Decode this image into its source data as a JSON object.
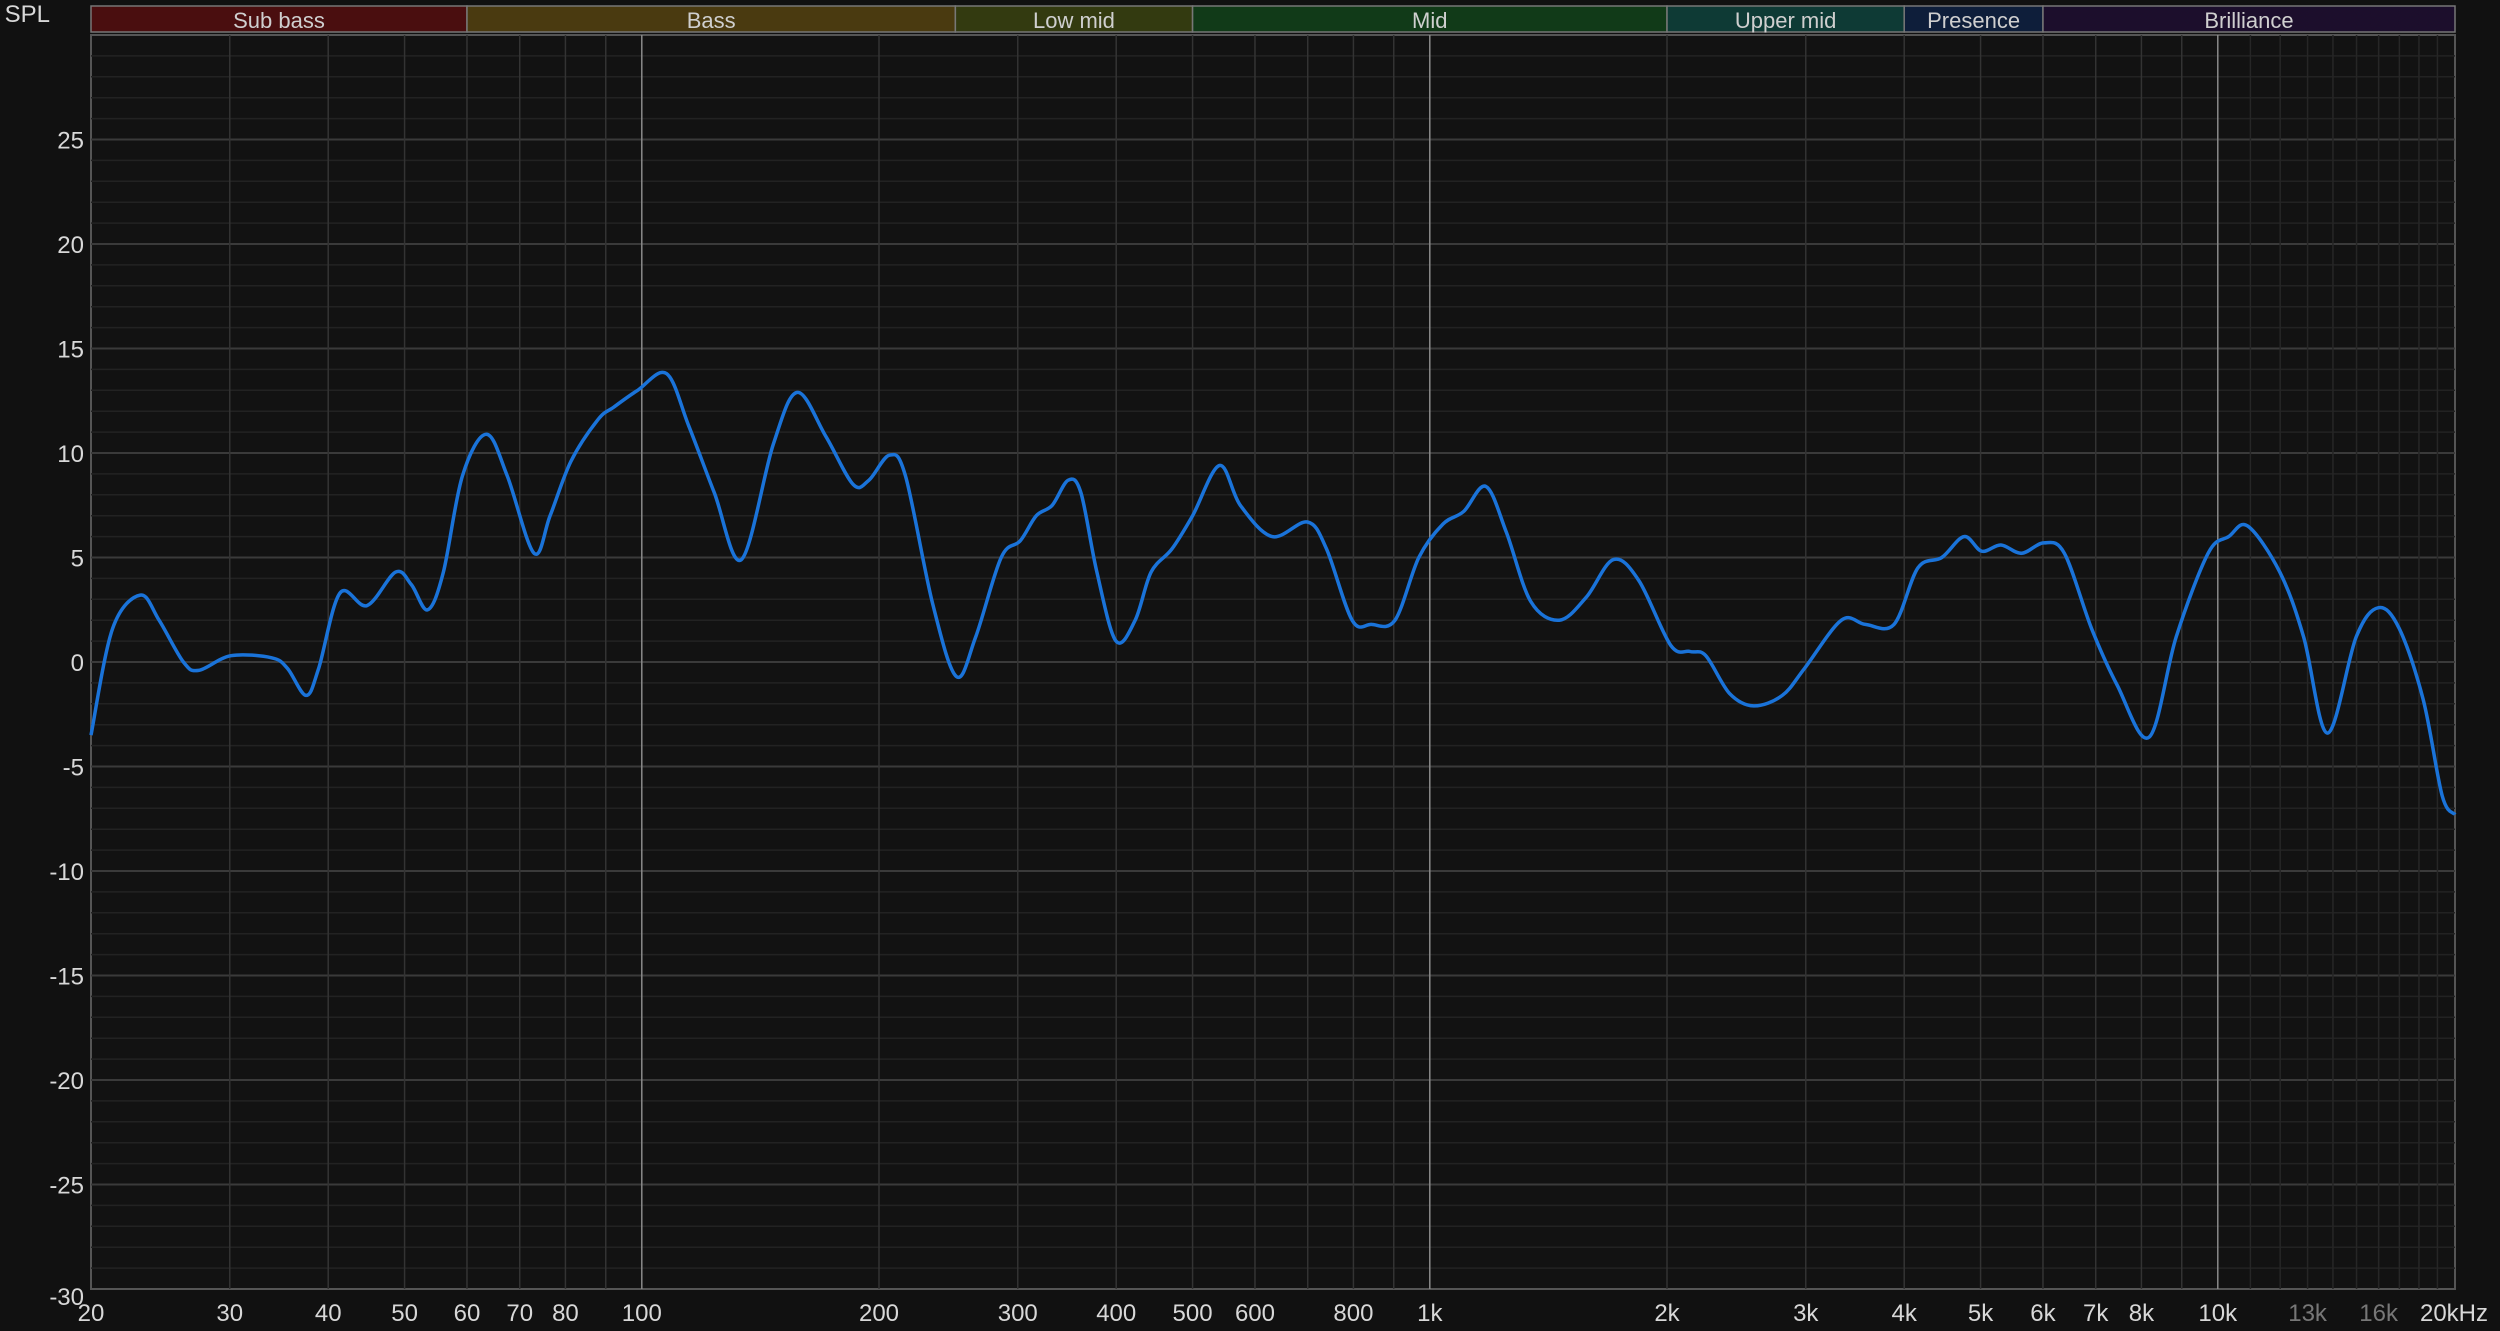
{
  "chart_data": {
    "type": "line",
    "ylabel": "SPL",
    "xlabel_unit": "kHz",
    "x_scale": "log",
    "xlim": [
      20,
      20000
    ],
    "ylim": [
      -30,
      30
    ],
    "grid": true,
    "y_ticks": [
      25,
      20,
      15,
      10,
      5,
      0,
      -5,
      -10,
      -15,
      -20,
      -25,
      -30
    ],
    "x_ticks": [
      {
        "value": 20,
        "label": "20"
      },
      {
        "value": 30,
        "label": "30"
      },
      {
        "value": 40,
        "label": "40"
      },
      {
        "value": 50,
        "label": "50"
      },
      {
        "value": 60,
        "label": "60"
      },
      {
        "value": 70,
        "label": "70"
      },
      {
        "value": 80,
        "label": "80"
      },
      {
        "value": 100,
        "label": "100"
      },
      {
        "value": 200,
        "label": "200"
      },
      {
        "value": 300,
        "label": "300"
      },
      {
        "value": 400,
        "label": "400"
      },
      {
        "value": 500,
        "label": "500"
      },
      {
        "value": 600,
        "label": "600"
      },
      {
        "value": 800,
        "label": "800"
      },
      {
        "value": 1000,
        "label": "1k"
      },
      {
        "value": 2000,
        "label": "2k"
      },
      {
        "value": 3000,
        "label": "3k"
      },
      {
        "value": 4000,
        "label": "4k"
      },
      {
        "value": 5000,
        "label": "5k"
      },
      {
        "value": 6000,
        "label": "6k"
      },
      {
        "value": 7000,
        "label": "7k"
      },
      {
        "value": 8000,
        "label": "8k"
      },
      {
        "value": 10000,
        "label": "10k"
      },
      {
        "value": 13000,
        "label": "13k",
        "dim": true
      },
      {
        "value": 16000,
        "label": "16k",
        "dim": true
      },
      {
        "value": 20000,
        "label": "20kHz"
      }
    ],
    "bands": [
      {
        "label": "Sub bass",
        "from": 20,
        "to": 60,
        "color": "#4a0e0f"
      },
      {
        "label": "Bass",
        "from": 60,
        "to": 250,
        "color": "#4a3a10"
      },
      {
        "label": "Low mid",
        "from": 250,
        "to": 500,
        "color": "#333a10"
      },
      {
        "label": "Mid",
        "from": 500,
        "to": 2000,
        "color": "#113a18"
      },
      {
        "label": "Upper mid",
        "from": 2000,
        "to": 4000,
        "color": "#0e3a35"
      },
      {
        "label": "Presence",
        "from": 4000,
        "to": 6000,
        "color": "#0e1e3a"
      },
      {
        "label": "Brilliance",
        "from": 6000,
        "to": 20000,
        "color": "#1c0e2c"
      }
    ],
    "series": [
      {
        "color": "#1a73d9",
        "x": [
          20,
          21.3,
          23.1,
          24.4,
          26.2,
          27.4,
          30.1,
          33.9,
          35.5,
          37.5,
          38.9,
          41.4,
          44.8,
          48.7,
          51,
          53.5,
          56,
          59.2,
          63.5,
          67.5,
          73,
          76.5,
          81.3,
          88,
          92.2,
          98.8,
          107.5,
          114.7,
          123.6,
          133.8,
          146.8,
          157.5,
          171.2,
          185.4,
          194.2,
          206.3,
          216.1,
          233.9,
          250.8,
          265.3,
          285.8,
          302.2,
          316.7,
          331.8,
          347.6,
          360.8,
          378,
          399.8,
          422.8,
          442.9,
          470.5,
          500,
          541,
          574.8,
          631,
          699.5,
          739.7,
          796.8,
          842.7,
          903.3,
          968.5,
          1039,
          1104,
          1178,
          1251,
          1343,
          1460,
          1580,
          1710,
          1842,
          2022,
          2139,
          2240,
          2401,
          2576,
          2801,
          2990,
          3329,
          3570,
          3882,
          4163,
          4464,
          4765,
          5017,
          5306,
          5636,
          6015,
          6388,
          6916,
          7452,
          8182,
          8856,
          9722,
          10324,
          10918,
          11987,
          12850,
          13780,
          14986,
          15996,
          16994,
          18227,
          19267,
          20000
        ],
        "y": [
          -3.5,
          1.6,
          3.2,
          2,
          0,
          -0.4,
          0.3,
          0.2,
          -0.3,
          -1.6,
          -0.3,
          3.3,
          2.7,
          4.3,
          3.7,
          2.5,
          4.3,
          8.9,
          10.9,
          8.9,
          5.2,
          7,
          9.6,
          11.6,
          12.2,
          13,
          13.8,
          11.3,
          8.1,
          4.9,
          10.4,
          12.9,
          10.8,
          8.5,
          8.7,
          9.9,
          8.9,
          2.8,
          -0.7,
          1.2,
          5,
          5.8,
          7,
          7.5,
          8.7,
          8.1,
          4.3,
          1,
          2,
          4.3,
          5.4,
          7,
          9.4,
          7.5,
          6,
          6.7,
          5.4,
          2,
          1.8,
          2,
          5,
          6.6,
          7.2,
          8.4,
          6.2,
          2.9,
          2,
          3.1,
          4.9,
          3.9,
          0.8,
          0.5,
          0.3,
          -1.5,
          -2.1,
          -1.6,
          -0.3,
          2,
          1.8,
          1.8,
          4.5,
          5,
          6,
          5.3,
          5.6,
          5.2,
          5.7,
          5.2,
          1.6,
          -1.1,
          -3.6,
          1.2,
          5.2,
          6,
          6.5,
          4.3,
          1.2,
          -3.4,
          1.2,
          2.6,
          1.6,
          -1.8,
          -6.4,
          -7.3
        ]
      }
    ]
  }
}
